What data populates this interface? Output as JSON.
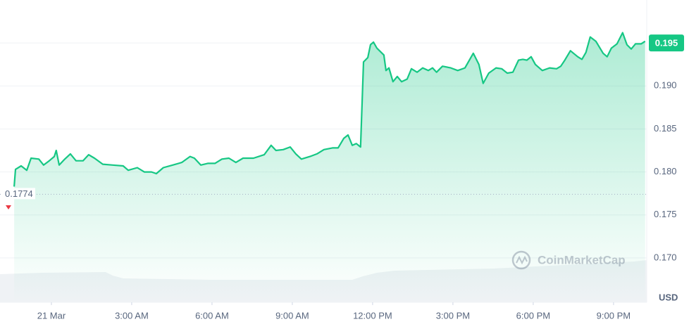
{
  "chart_data": {
    "type": "area-line",
    "x": [
      -1.39,
      -1.34,
      -1.13,
      -0.92,
      -0.76,
      -0.47,
      -0.29,
      -0.08,
      0.11,
      0.18,
      0.29,
      0.5,
      0.71,
      0.92,
      1.18,
      1.39,
      1.61,
      1.92,
      2.29,
      2.68,
      2.87,
      3.21,
      3.47,
      3.74,
      3.92,
      4.18,
      4.53,
      4.87,
      5.18,
      5.34,
      5.58,
      5.84,
      6.11,
      6.37,
      6.63,
      6.89,
      7.16,
      7.55,
      7.95,
      8.21,
      8.39,
      8.66,
      8.92,
      9.13,
      9.34,
      9.66,
      9.92,
      10.18,
      10.5,
      10.71,
      10.92,
      11.08,
      11.24,
      11.39,
      11.55,
      11.66,
      11.82,
      11.92,
      12.03,
      12.16,
      12.42,
      12.5,
      12.61,
      12.76,
      12.92,
      13.08,
      13.29,
      13.45,
      13.66,
      13.87,
      14.08,
      14.24,
      14.39,
      14.61,
      14.92,
      15.18,
      15.45,
      15.76,
      15.97,
      16.13,
      16.34,
      16.61,
      16.82,
      17.03,
      17.24,
      17.45,
      17.61,
      17.76,
      17.92,
      18.08,
      18.34,
      18.61,
      18.87,
      19.03,
      19.18,
      19.39,
      19.66,
      19.82,
      19.97,
      20.13,
      20.34,
      20.61,
      20.76,
      20.92,
      21.13,
      21.34,
      21.5,
      21.66,
      21.82,
      22.03,
      22.18
    ],
    "series": [
      {
        "color": "#16c784",
        "values": [
          0.1783,
          0.1803,
          0.1807,
          0.1802,
          0.1816,
          0.1815,
          0.1808,
          0.1813,
          0.1818,
          0.1825,
          0.1808,
          0.1815,
          0.1821,
          0.1813,
          0.1813,
          0.182,
          0.1816,
          0.1809,
          0.1808,
          0.1807,
          0.1802,
          0.1805,
          0.18,
          0.18,
          0.1798,
          0.1805,
          0.1808,
          0.1811,
          0.1818,
          0.1816,
          0.1808,
          0.181,
          0.181,
          0.1815,
          0.1816,
          0.1811,
          0.1816,
          0.1816,
          0.182,
          0.1831,
          0.1825,
          0.1826,
          0.1829,
          0.1821,
          0.1815,
          0.1818,
          0.1821,
          0.1826,
          0.1828,
          0.1828,
          0.1839,
          0.1843,
          0.1831,
          0.1833,
          0.1829,
          0.1928,
          0.1933,
          0.1948,
          0.1951,
          0.1944,
          0.1936,
          0.1918,
          0.1921,
          0.1905,
          0.1911,
          0.1905,
          0.1908,
          0.192,
          0.1916,
          0.1921,
          0.1918,
          0.1921,
          0.1916,
          0.1923,
          0.1921,
          0.1918,
          0.1921,
          0.1938,
          0.1925,
          0.1903,
          0.1915,
          0.1921,
          0.192,
          0.1915,
          0.1916,
          0.193,
          0.1931,
          0.193,
          0.1934,
          0.1925,
          0.1918,
          0.1921,
          0.192,
          0.1923,
          0.193,
          0.1941,
          0.1934,
          0.1931,
          0.1939,
          0.1957,
          0.1952,
          0.1938,
          0.1934,
          0.1944,
          0.1949,
          0.1962,
          0.1948,
          0.1943,
          0.1949,
          0.1949,
          0.1952
        ]
      }
    ],
    "xlim": [
      -1.92,
      22.24
    ],
    "xticks": [
      {
        "value": 0,
        "label": "21 Mar"
      },
      {
        "value": 3,
        "label": "3:00 AM"
      },
      {
        "value": 6,
        "label": "6:00 AM"
      },
      {
        "value": 9,
        "label": "9:00 AM"
      },
      {
        "value": 12,
        "label": "12:00 PM"
      },
      {
        "value": 15,
        "label": "3:00 PM"
      },
      {
        "value": 18,
        "label": "6:00 PM"
      },
      {
        "value": 21,
        "label": "9:00 PM"
      }
    ],
    "ylim": [
      0.16484,
      0.2
    ],
    "yticks": [
      {
        "value": 0.17,
        "label": "0.170"
      },
      0.175,
      {
        "value": 0.18,
        "label": "0.180"
      },
      0.185,
      {
        "value": 0.19,
        "label": "0.190"
      },
      0.195
    ],
    "ylabel": "USD",
    "baseline": 0.1774,
    "last_price": 0.195,
    "watermark": "CoinMarketCap",
    "grid": true
  }
}
